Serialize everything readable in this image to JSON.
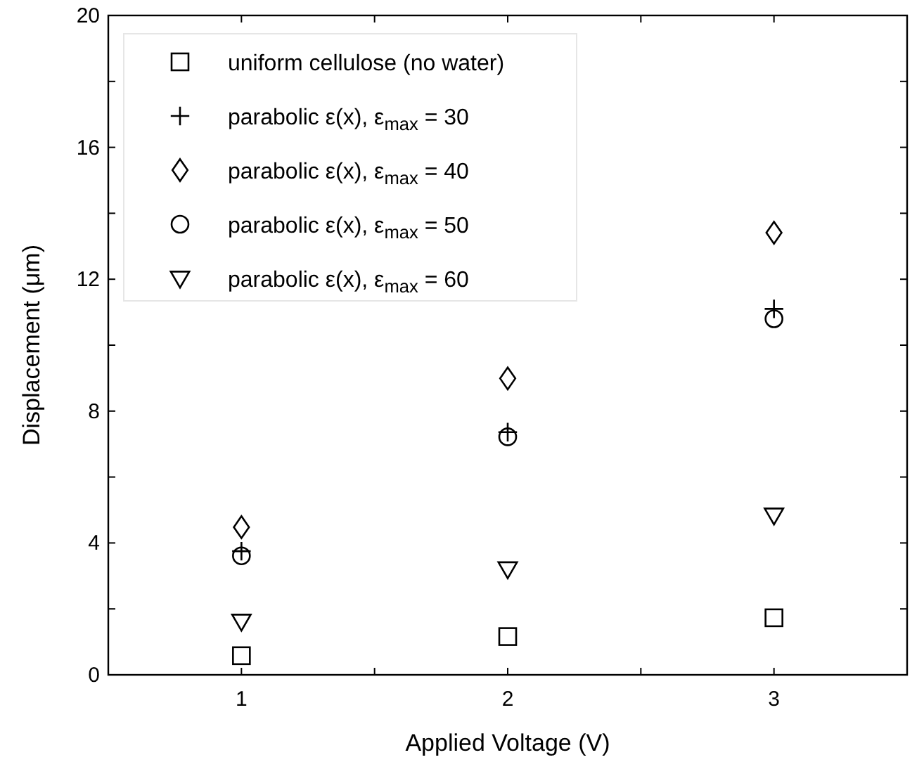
{
  "chart_data": {
    "type": "scatter",
    "xlabel": "Applied Voltage (V)",
    "ylabel": "Displacement (μm)",
    "x": [
      1,
      2,
      3
    ],
    "xlim": [
      0.5,
      3.5
    ],
    "xticks": [
      1,
      {
        "value": 1.5,
        "label": null
      },
      2,
      {
        "value": 2.5,
        "label": null
      },
      3
    ],
    "ylim": [
      0,
      20
    ],
    "yticks": [
      0,
      {
        "value": 2,
        "label": null
      },
      4,
      {
        "value": 6,
        "label": null
      },
      8,
      {
        "value": 10,
        "label": null
      },
      12,
      {
        "value": 14,
        "label": null
      },
      16,
      {
        "value": 18,
        "label": null
      },
      20
    ],
    "grid": false,
    "legend": "top left",
    "series": [
      {
        "name": "uniform cellulose (no water)",
        "color": "#000000",
        "marker": "square",
        "values": [
          0.58,
          1.16,
          1.73
        ]
      },
      {
        "name": "parabolic ε(x), ε$_{max}$ = 30",
        "color": "#000000",
        "marker": "cross",
        "values": [
          3.75,
          7.36,
          11.1
        ]
      },
      {
        "name": "parabolic ε(x), ε$_{max}$ = 40",
        "color": "#000000",
        "marker": "diamond",
        "values": [
          4.48,
          8.99,
          13.41
        ]
      },
      {
        "name": "parabolic ε(x), ε$_{max}$ = 50",
        "color": "#000000",
        "marker": "circle",
        "values": [
          3.61,
          7.22,
          10.8
        ]
      },
      {
        "name": "parabolic ε(x), ε$_{max}$ = 60",
        "color": "#000000",
        "marker": "triangle",
        "values": [
          1.62,
          3.21,
          4.84
        ]
      }
    ]
  }
}
